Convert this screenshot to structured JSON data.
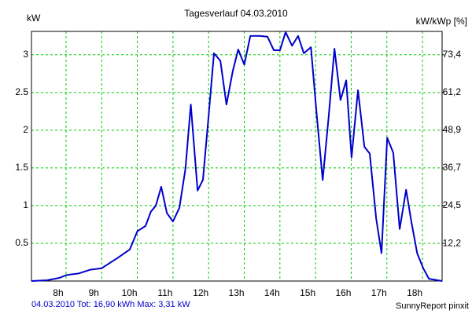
{
  "chart_data": {
    "type": "line",
    "title": "Tagesverlauf 04.03.2010",
    "y_label": "kW",
    "y2_label": "kW/kWp [%]",
    "footer_left": "04.03.2010 Tot: 16,90 kWh Max: 3,31 kW",
    "footer_right": "SunnyReport pinxit",
    "x": [
      7.03,
      7.47,
      7.8,
      8.02,
      8.35,
      8.68,
      9.0,
      9.46,
      9.79,
      10.0,
      10.23,
      10.38,
      10.52,
      10.67,
      10.83,
      11.0,
      11.18,
      11.35,
      11.5,
      11.69,
      11.84,
      12.0,
      12.15,
      12.33,
      12.5,
      12.68,
      12.83,
      13.0,
      13.17,
      13.43,
      13.65,
      13.83,
      14.0,
      14.16,
      14.34,
      14.51,
      14.67,
      14.87,
      15.02,
      15.2,
      15.37,
      15.53,
      15.7,
      15.86,
      16.01,
      16.19,
      16.37,
      16.52,
      16.7,
      16.85,
      17.01,
      17.18,
      17.36,
      17.54,
      17.69,
      17.85,
      18.02,
      18.18,
      18.55
    ],
    "series": [
      {
        "name": "kW",
        "color": "#0000cc",
        "values": [
          0,
          0.01,
          0.04,
          0.08,
          0.1,
          0.15,
          0.17,
          0.31,
          0.42,
          0.66,
          0.73,
          0.92,
          1.0,
          1.25,
          0.9,
          0.79,
          0.97,
          1.49,
          2.34,
          1.2,
          1.34,
          2.19,
          3.02,
          2.92,
          2.34,
          2.79,
          3.07,
          2.87,
          3.25,
          3.25,
          3.24,
          3.06,
          3.06,
          3.3,
          3.12,
          3.25,
          3.02,
          3.1,
          2.27,
          1.34,
          2.19,
          3.08,
          2.4,
          2.66,
          1.64,
          2.53,
          1.78,
          1.69,
          0.83,
          0.37,
          1.9,
          1.7,
          0.69,
          1.21,
          0.78,
          0.37,
          0.17,
          0.03,
          0
        ]
      }
    ],
    "xlim": [
      7.03,
      18.55
    ],
    "xticks": [
      {
        "value": 8,
        "label": "8h"
      },
      {
        "value": 9,
        "label": "9h"
      },
      {
        "value": 10,
        "label": "10h"
      },
      {
        "value": 11,
        "label": "11h"
      },
      {
        "value": 12,
        "label": "12h"
      },
      {
        "value": 13,
        "label": "13h"
      },
      {
        "value": 14,
        "label": "14h"
      },
      {
        "value": 15,
        "label": "15h"
      },
      {
        "value": 16,
        "label": "16h"
      },
      {
        "value": 17,
        "label": "17h"
      },
      {
        "value": 18,
        "label": "18h"
      }
    ],
    "ylim": [
      0,
      3.31
    ],
    "yticks": [
      0.5,
      1,
      1.5,
      2,
      2.5,
      3
    ],
    "y2lim": [
      0,
      81
    ],
    "y2ticks": [
      {
        "value": 12.2,
        "label": "12,2"
      },
      {
        "value": 24.5,
        "label": "24,5"
      },
      {
        "value": 36.7,
        "label": "36,7"
      },
      {
        "value": 48.9,
        "label": "48,9"
      },
      {
        "value": 61.2,
        "label": "61,2"
      },
      {
        "value": 73.4,
        "label": "73,4"
      }
    ],
    "grid": true
  }
}
